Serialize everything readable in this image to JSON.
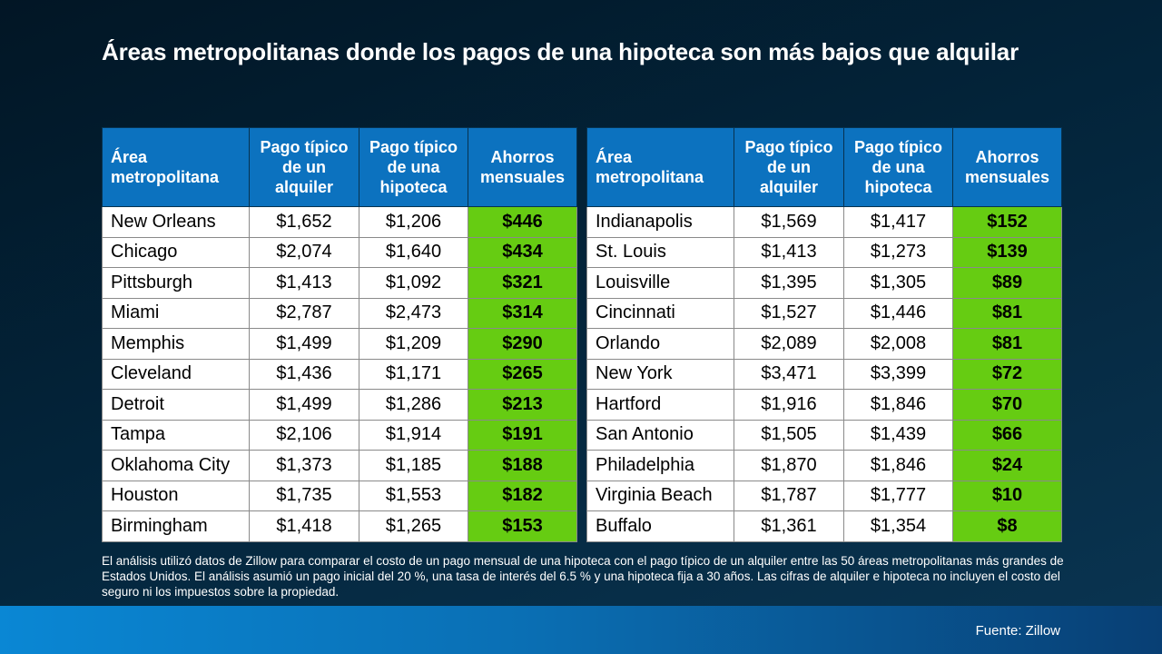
{
  "title": "Áreas metropolitanas donde los pagos de una hipoteca son más bajos que alquilar",
  "headers": {
    "area": "Área metropolitana",
    "rent": "Pago típico de un alquiler",
    "mortgage": "Pago típico de una hipoteca",
    "savings": "Ahorros mensuales"
  },
  "colors": {
    "header_bg": "#0c72bf",
    "savings_bg": "#66cc12",
    "background": "#03243a"
  },
  "chart_data": {
    "type": "table",
    "columns": [
      "Área metropolitana",
      "Pago típico de un alquiler",
      "Pago típico de una hipoteca",
      "Ahorros mensuales"
    ],
    "rows": [
      [
        "New Orleans",
        "$1,652",
        "$1,206",
        "$446"
      ],
      [
        "Chicago",
        "$2,074",
        "$1,640",
        "$434"
      ],
      [
        "Pittsburgh",
        "$1,413",
        "$1,092",
        "$321"
      ],
      [
        "Miami",
        "$2,787",
        "$2,473",
        "$314"
      ],
      [
        "Memphis",
        "$1,499",
        "$1,209",
        "$290"
      ],
      [
        "Cleveland",
        "$1,436",
        "$1,171",
        "$265"
      ],
      [
        "Detroit",
        "$1,499",
        "$1,286",
        "$213"
      ],
      [
        "Tampa",
        "$2,106",
        "$1,914",
        "$191"
      ],
      [
        "Oklahoma City",
        "$1,373",
        "$1,185",
        "$188"
      ],
      [
        "Houston",
        "$1,735",
        "$1,553",
        "$182"
      ],
      [
        "Birmingham",
        "$1,418",
        "$1,265",
        "$153"
      ],
      [
        "Indianapolis",
        "$1,569",
        "$1,417",
        "$152"
      ],
      [
        "St. Louis",
        "$1,413",
        "$1,273",
        "$139"
      ],
      [
        "Louisville",
        "$1,395",
        "$1,305",
        "$89"
      ],
      [
        "Cincinnati",
        "$1,527",
        "$1,446",
        "$81"
      ],
      [
        "Orlando",
        "$2,089",
        "$2,008",
        "$81"
      ],
      [
        "New York",
        "$3,471",
        "$3,399",
        "$72"
      ],
      [
        "Hartford",
        "$1,916",
        "$1,846",
        "$70"
      ],
      [
        "San Antonio",
        "$1,505",
        "$1,439",
        "$66"
      ],
      [
        "Philadelphia",
        "$1,870",
        "$1,846",
        "$24"
      ],
      [
        "Virginia Beach",
        "$1,787",
        "$1,777",
        "$10"
      ],
      [
        "Buffalo",
        "$1,361",
        "$1,354",
        "$8"
      ]
    ]
  },
  "note": "El análisis utilizó datos de Zillow para comparar el costo de un pago mensual de una hipoteca con el pago típico de un alquiler entre las 50 áreas metropolitanas más grandes de Estados Unidos. El análisis asumió un pago inicial del 20 %, una tasa de interés del 6.5 % y una hipoteca fija a 30 años. Las cifras de alquiler e hipoteca no incluyen el costo del seguro ni los impuestos sobre la propiedad.",
  "source": "Fuente: Zillow"
}
